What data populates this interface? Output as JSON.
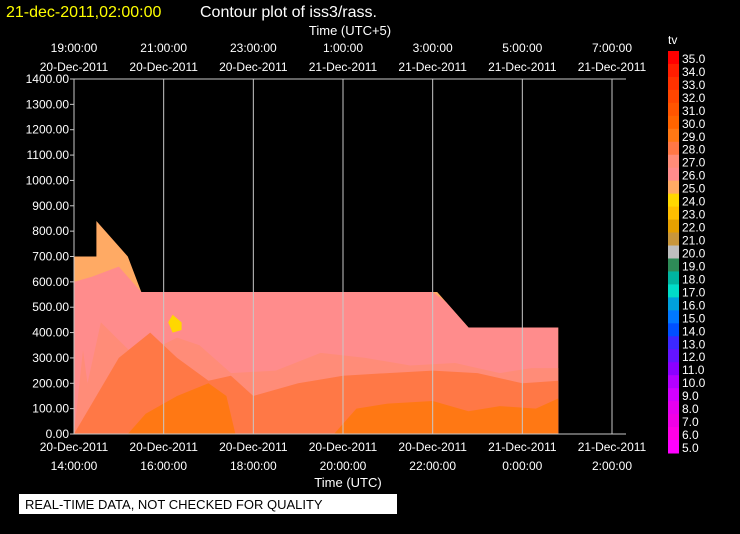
{
  "header": {
    "datetime": "21-dec-2011,02:00:00",
    "title": "Contour plot of iss3/rass."
  },
  "top_axis": {
    "label": "Time (UTC+5)",
    "ticks": [
      {
        "time": "19:00:00",
        "date": "20-Dec-2011"
      },
      {
        "time": "21:00:00",
        "date": "20-Dec-2011"
      },
      {
        "time": "23:00:00",
        "date": "20-Dec-2011"
      },
      {
        "time": "1:00:00",
        "date": "21-Dec-2011"
      },
      {
        "time": "3:00:00",
        "date": "21-Dec-2011"
      },
      {
        "time": "5:00:00",
        "date": "21-Dec-2011"
      },
      {
        "time": "7:00:00",
        "date": "21-Dec-2011"
      }
    ]
  },
  "bottom_axis": {
    "label": "Time (UTC)",
    "ticks": [
      {
        "date": "20-Dec-2011",
        "time": "14:00:00"
      },
      {
        "date": "20-Dec-2011",
        "time": "16:00:00"
      },
      {
        "date": "20-Dec-2011",
        "time": "18:00:00"
      },
      {
        "date": "20-Dec-2011",
        "time": "20:00:00"
      },
      {
        "date": "20-Dec-2011",
        "time": "22:00:00"
      },
      {
        "date": "21-Dec-2011",
        "time": "0:00:00"
      },
      {
        "date": "21-Dec-2011",
        "time": "2:00:00"
      }
    ]
  },
  "colorbar": {
    "label": "tv",
    "levels": [
      {
        "v": "35.0",
        "c": "#ff0000"
      },
      {
        "v": "34.0",
        "c": "#ff1e00"
      },
      {
        "v": "33.0",
        "c": "#ff3200"
      },
      {
        "v": "32.0",
        "c": "#ff4600"
      },
      {
        "v": "31.0",
        "c": "#ff5500"
      },
      {
        "v": "30.0",
        "c": "#ff6400"
      },
      {
        "v": "29.0",
        "c": "#ff7814"
      },
      {
        "v": "28.0",
        "c": "#ff7846"
      },
      {
        "v": "27.0",
        "c": "#ff8c78"
      },
      {
        "v": "26.0",
        "c": "#ff8c8c"
      },
      {
        "v": "25.0",
        "c": "#ffaa64"
      },
      {
        "v": "24.0",
        "c": "#ffd700"
      },
      {
        "v": "23.0",
        "c": "#ffbe00"
      },
      {
        "v": "22.0",
        "c": "#e6a000"
      },
      {
        "v": "21.0",
        "c": "#c8963c"
      },
      {
        "v": "20.0",
        "c": "#bebebe"
      },
      {
        "v": "19.0",
        "c": "#2e8b57"
      },
      {
        "v": "18.0",
        "c": "#00b4a0"
      },
      {
        "v": "17.0",
        "c": "#00dcc8"
      },
      {
        "v": "16.0",
        "c": "#00a0dc"
      },
      {
        "v": "15.0",
        "c": "#0078ff"
      },
      {
        "v": "14.0",
        "c": "#0050ff"
      },
      {
        "v": "13.0",
        "c": "#3c28ff"
      },
      {
        "v": "12.0",
        "c": "#6414ff"
      },
      {
        "v": "11.0",
        "c": "#8c00ff"
      },
      {
        "v": "10.0",
        "c": "#b400ff"
      },
      {
        "v": "9.0",
        "c": "#d200ff"
      },
      {
        "v": "8.0",
        "c": "#e600f0"
      },
      {
        "v": "7.0",
        "c": "#f000e6"
      },
      {
        "v": "6.0",
        "c": "#ff00e6"
      },
      {
        "v": "5.0",
        "c": "#ff00ff"
      }
    ]
  },
  "chart_data": {
    "type": "heatmap",
    "xlabel": "Time (UTC)",
    "ylabel": "",
    "ylim": [
      0,
      1400
    ],
    "yticks": [
      "0.00",
      "100.00",
      "200.00",
      "300.00",
      "400.00",
      "500.00",
      "600.00",
      "700.00",
      "800.00",
      "900.00",
      "1000.00",
      "1100.00",
      "1200.00",
      "1300.00",
      "1400.00"
    ],
    "x_range_utc_hours": [
      14,
      26
    ],
    "grid": true,
    "regions": [
      {
        "tv": 25,
        "color": "#ffaa64",
        "outline": [
          [
            14,
            700
          ],
          [
            14.5,
            700
          ],
          [
            14.5,
            840
          ],
          [
            15.2,
            700
          ],
          [
            15.5,
            560
          ],
          [
            22.1,
            560
          ],
          [
            22.8,
            420
          ],
          [
            24.8,
            420
          ],
          [
            24.8,
            0
          ],
          [
            14,
            0
          ]
        ]
      },
      {
        "tv": 26,
        "color": "#ff8c8c",
        "outline": [
          [
            14,
            600
          ],
          [
            14.4,
            620
          ],
          [
            15,
            660
          ],
          [
            15.5,
            560
          ],
          [
            22,
            560
          ],
          [
            22.3,
            520
          ],
          [
            22.8,
            420
          ],
          [
            24.8,
            420
          ],
          [
            24.8,
            0
          ],
          [
            14,
            0
          ]
        ]
      },
      {
        "tv": 24,
        "color": "#ffd700",
        "outline": [
          [
            16.2,
            470
          ],
          [
            16.4,
            440
          ],
          [
            16.4,
            410
          ],
          [
            16.2,
            400
          ],
          [
            16.1,
            440
          ]
        ]
      },
      {
        "tv": 27,
        "color": "#ff8c78",
        "outline": [
          [
            14.2,
            330
          ],
          [
            14.3,
            200
          ],
          [
            14.6,
            440
          ],
          [
            15.4,
            300
          ],
          [
            16.3,
            380
          ],
          [
            16.8,
            350
          ],
          [
            17.5,
            240
          ],
          [
            18.5,
            250
          ],
          [
            19.5,
            320
          ],
          [
            20.5,
            300
          ],
          [
            21.5,
            270
          ],
          [
            22.5,
            280
          ],
          [
            23.5,
            240
          ],
          [
            24.2,
            260
          ],
          [
            24.8,
            260
          ],
          [
            24.8,
            0
          ],
          [
            14,
            0
          ]
        ]
      },
      {
        "tv": 28,
        "color": "#ff7846",
        "outline": [
          [
            14,
            0
          ],
          [
            14.4,
            120
          ],
          [
            15,
            300
          ],
          [
            15.7,
            400
          ],
          [
            16.3,
            300
          ],
          [
            17,
            210
          ],
          [
            17.5,
            230
          ],
          [
            18,
            150
          ],
          [
            19,
            200
          ],
          [
            20,
            230
          ],
          [
            21,
            240
          ],
          [
            22,
            250
          ],
          [
            23,
            240
          ],
          [
            24,
            200
          ],
          [
            24.8,
            210
          ],
          [
            24.8,
            0
          ]
        ]
      },
      {
        "tv": 29,
        "color": "#ff7814",
        "outline": [
          [
            15.2,
            0
          ],
          [
            15.6,
            80
          ],
          [
            16.3,
            150
          ],
          [
            17,
            200
          ],
          [
            17.4,
            150
          ],
          [
            17.6,
            0
          ]
        ]
      },
      {
        "tv": 29,
        "color": "#ff7814",
        "outline": [
          [
            19.8,
            0
          ],
          [
            20.3,
            100
          ],
          [
            21,
            120
          ],
          [
            22,
            130
          ],
          [
            22.8,
            90
          ],
          [
            23.5,
            110
          ],
          [
            24.3,
            100
          ],
          [
            24.8,
            140
          ],
          [
            24.8,
            0
          ]
        ]
      }
    ]
  },
  "footer": {
    "notice": "REAL-TIME DATA, NOT CHECKED FOR QUALITY"
  }
}
